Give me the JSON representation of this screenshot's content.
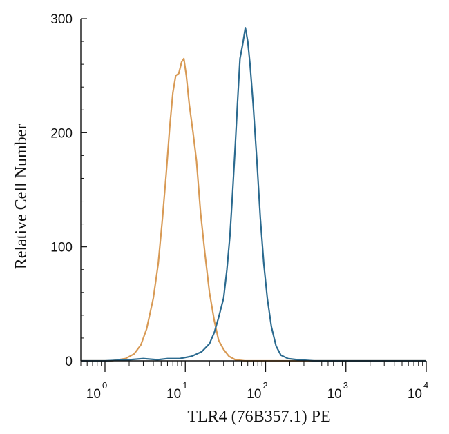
{
  "chart_data": {
    "type": "line",
    "title": "",
    "xlabel": "TLR4 (76B357.1) PE",
    "ylabel": "Relative Cell Number",
    "x_scale": "log",
    "xlim": [
      0.5,
      10000
    ],
    "ylim": [
      0,
      300
    ],
    "x_ticks": [
      {
        "base": "10",
        "exp": "0",
        "value": 1
      },
      {
        "base": "10",
        "exp": "1",
        "value": 10
      },
      {
        "base": "10",
        "exp": "2",
        "value": 100
      },
      {
        "base": "10",
        "exp": "3",
        "value": 1000
      },
      {
        "base": "10",
        "exp": "4",
        "value": 10000
      }
    ],
    "y_ticks": [
      {
        "label": "0",
        "value": 0
      },
      {
        "label": "100",
        "value": 100
      },
      {
        "label": "200",
        "value": 200
      },
      {
        "label": "300",
        "value": 300
      }
    ],
    "grid": false,
    "legend": "none",
    "series": [
      {
        "color": "#d89a55",
        "points": [
          [
            0.5,
            0
          ],
          [
            1.2,
            0
          ],
          [
            1.8,
            2
          ],
          [
            2.3,
            6
          ],
          [
            2.8,
            14
          ],
          [
            3.3,
            28
          ],
          [
            4,
            55
          ],
          [
            4.6,
            85
          ],
          [
            5.2,
            125
          ],
          [
            5.8,
            165
          ],
          [
            6.4,
            205
          ],
          [
            7,
            235
          ],
          [
            7.6,
            250
          ],
          [
            8.3,
            252
          ],
          [
            9,
            262
          ],
          [
            9.6,
            265
          ],
          [
            10.3,
            250
          ],
          [
            11.2,
            225
          ],
          [
            12.5,
            200
          ],
          [
            13.8,
            175
          ],
          [
            15.5,
            130
          ],
          [
            17.5,
            95
          ],
          [
            20,
            60
          ],
          [
            23,
            35
          ],
          [
            26,
            18
          ],
          [
            30,
            10
          ],
          [
            35,
            4
          ],
          [
            42,
            1
          ],
          [
            55,
            0
          ],
          [
            100,
            0
          ],
          [
            1000,
            0
          ],
          [
            10000,
            0
          ]
        ]
      },
      {
        "color": "#2b6a8f",
        "points": [
          [
            0.5,
            0
          ],
          [
            1,
            0
          ],
          [
            2,
            1
          ],
          [
            3,
            2
          ],
          [
            4.5,
            1
          ],
          [
            6,
            2
          ],
          [
            8.5,
            2
          ],
          [
            12,
            4
          ],
          [
            16,
            8
          ],
          [
            20,
            15
          ],
          [
            23,
            25
          ],
          [
            26,
            38
          ],
          [
            30,
            55
          ],
          [
            33,
            80
          ],
          [
            36,
            110
          ],
          [
            39,
            150
          ],
          [
            42,
            190
          ],
          [
            45,
            230
          ],
          [
            48,
            265
          ],
          [
            52,
            278
          ],
          [
            56,
            292
          ],
          [
            60,
            280
          ],
          [
            64,
            260
          ],
          [
            70,
            225
          ],
          [
            78,
            175
          ],
          [
            86,
            125
          ],
          [
            95,
            85
          ],
          [
            105,
            55
          ],
          [
            118,
            30
          ],
          [
            135,
            13
          ],
          [
            155,
            5
          ],
          [
            190,
            2
          ],
          [
            250,
            1
          ],
          [
            400,
            0
          ],
          [
            1000,
            0
          ],
          [
            10000,
            0
          ]
        ]
      }
    ]
  }
}
